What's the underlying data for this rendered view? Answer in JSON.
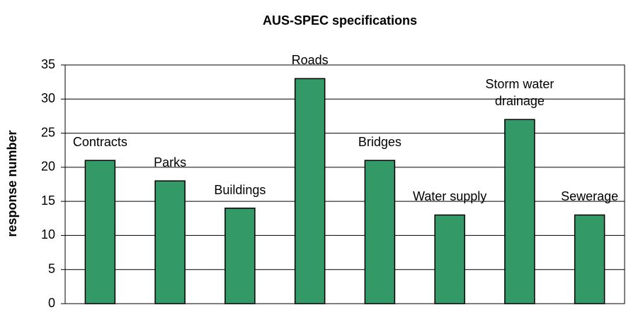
{
  "chart_data": {
    "type": "bar",
    "title": "AUS-SPEC specifications",
    "y_label": "response number",
    "categories": [
      "Contracts",
      "Parks",
      "Buildings",
      "Roads",
      "Bridges",
      "Water supply",
      "Storm water drainage",
      "Sewerage"
    ],
    "values": [
      21,
      18,
      14,
      33,
      21,
      13,
      27,
      13
    ],
    "color": "#339966",
    "ylim": [
      0,
      35
    ],
    "yticks": [
      0,
      5,
      10,
      15,
      20,
      25,
      30,
      35
    ],
    "grid": true
  }
}
